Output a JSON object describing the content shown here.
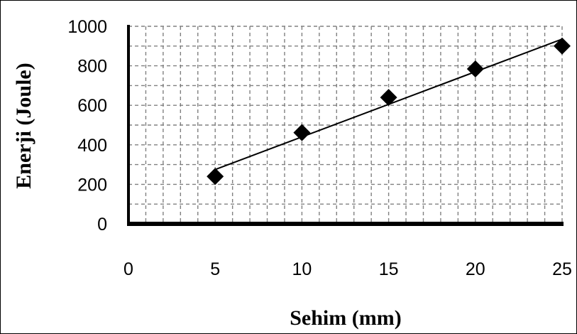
{
  "chart_data": {
    "type": "scatter",
    "title": "",
    "xlabel": "Sehim (mm)",
    "ylabel": "Enerji (Joule)",
    "xlim": [
      0,
      25
    ],
    "ylim": [
      0,
      1000
    ],
    "xticks": [
      "0",
      "5",
      "10",
      "15",
      "20",
      "25"
    ],
    "yticks": [
      "0",
      "200",
      "400",
      "600",
      "800",
      "1000"
    ],
    "grid": true,
    "grid_style": "dashed",
    "marker": "diamond",
    "trendline": {
      "type": "linear",
      "x": [
        5,
        25
      ],
      "y": [
        275,
        935
      ]
    },
    "series": [
      {
        "x": [
          5,
          10,
          15,
          20,
          25
        ],
        "y": [
          240,
          462,
          640,
          784,
          900
        ]
      }
    ],
    "colors": {
      "marker": "#000000",
      "axis": "#000000",
      "grid": "#808080"
    }
  }
}
